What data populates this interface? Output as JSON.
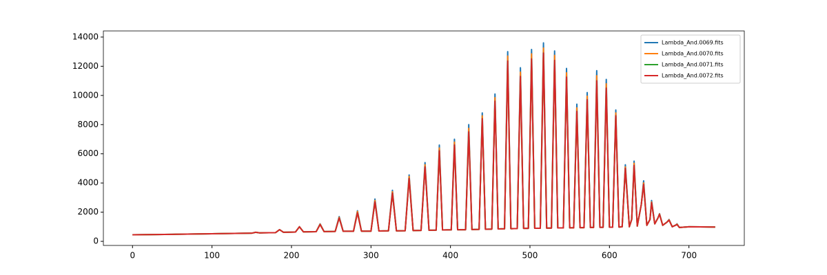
{
  "chart_data": {
    "type": "line",
    "x": [
      0,
      50,
      100,
      150,
      155,
      160,
      180,
      185,
      190,
      205,
      210,
      215,
      231,
      236,
      241,
      255,
      260,
      265,
      278,
      283,
      288,
      300,
      305,
      310,
      322,
      327,
      332,
      343,
      348,
      353,
      363,
      368,
      373,
      382,
      386,
      390,
      401,
      405,
      409,
      419,
      423,
      427,
      436,
      440,
      444,
      452,
      456,
      460,
      468,
      472,
      476,
      484,
      488,
      492,
      498,
      502,
      506,
      513,
      517,
      521,
      527,
      531,
      535,
      542,
      546,
      550,
      555,
      559,
      563,
      568,
      572,
      576,
      580,
      584,
      588,
      592,
      596,
      600,
      604,
      608,
      612,
      616,
      620,
      625,
      628,
      631,
      635,
      640,
      643,
      647,
      651,
      653,
      657,
      661,
      663,
      667,
      672,
      675,
      679,
      683,
      685,
      688,
      700,
      733
    ],
    "series": [
      {
        "name": "Lambda_And.0069.fits",
        "color": "#1f77b4",
        "values": [
          450,
          480,
          520,
          560,
          620,
          580,
          600,
          800,
          620,
          640,
          1000,
          650,
          660,
          1200,
          670,
          680,
          1700,
          690,
          690,
          2100,
          700,
          700,
          2900,
          710,
          720,
          3500,
          720,
          730,
          4550,
          740,
          750,
          5400,
          760,
          770,
          6600,
          780,
          790,
          7000,
          800,
          800,
          8000,
          810,
          820,
          8800,
          830,
          840,
          10100,
          850,
          860,
          13000,
          870,
          880,
          11900,
          890,
          890,
          13150,
          900,
          900,
          13600,
          910,
          910,
          13050,
          920,
          920,
          11850,
          930,
          930,
          9400,
          940,
          940,
          10200,
          950,
          950,
          11700,
          960,
          960,
          11100,
          970,
          970,
          9000,
          980,
          1000,
          5250,
          1000,
          1500,
          5500,
          1050,
          2500,
          4150,
          1100,
          1500,
          2800,
          1200,
          1600,
          1900,
          1100,
          1300,
          1500,
          1000,
          1100,
          1200,
          950,
          1000,
          980
        ]
      },
      {
        "name": "Lambda_And.0070.fits",
        "color": "#ff7f0e",
        "values": [
          450,
          480,
          520,
          560,
          620,
          580,
          600,
          800,
          620,
          640,
          1000,
          650,
          660,
          1180,
          670,
          680,
          1650,
          690,
          690,
          2050,
          700,
          700,
          2800,
          710,
          720,
          3400,
          720,
          730,
          4450,
          740,
          750,
          5250,
          760,
          770,
          6400,
          780,
          790,
          6800,
          800,
          800,
          7750,
          810,
          820,
          8600,
          830,
          840,
          9850,
          850,
          860,
          12700,
          870,
          880,
          11600,
          890,
          890,
          12850,
          900,
          900,
          13250,
          910,
          910,
          12750,
          920,
          920,
          11550,
          930,
          930,
          9150,
          940,
          940,
          9950,
          950,
          950,
          11350,
          960,
          960,
          10800,
          970,
          970,
          8800,
          980,
          1000,
          5100,
          1000,
          1500,
          5350,
          1050,
          2500,
          4000,
          1100,
          1500,
          2700,
          1200,
          1600,
          1880,
          1100,
          1300,
          1480,
          1000,
          1100,
          1180,
          950,
          1000,
          980
        ]
      },
      {
        "name": "Lambda_And.0071.fits",
        "color": "#2ca02c",
        "values": [
          450,
          480,
          520,
          560,
          620,
          580,
          600,
          800,
          620,
          640,
          1000,
          650,
          660,
          1150,
          670,
          680,
          1600,
          690,
          690,
          1950,
          700,
          700,
          2700,
          710,
          720,
          3300,
          720,
          730,
          4300,
          740,
          750,
          5100,
          760,
          770,
          6200,
          780,
          790,
          6600,
          800,
          800,
          7500,
          810,
          820,
          8400,
          830,
          840,
          9600,
          850,
          860,
          12350,
          870,
          880,
          11300,
          890,
          890,
          12500,
          900,
          900,
          12900,
          910,
          910,
          12400,
          920,
          920,
          11250,
          930,
          930,
          8900,
          940,
          940,
          9700,
          950,
          950,
          11000,
          960,
          960,
          10500,
          970,
          970,
          8600,
          980,
          1000,
          5000,
          1000,
          1500,
          5200,
          1050,
          2500,
          3900,
          1100,
          1500,
          2650,
          1200,
          1600,
          1850,
          1100,
          1300,
          1450,
          1000,
          1100,
          1150,
          950,
          1000,
          980
        ]
      },
      {
        "name": "Lambda_And.0072.fits",
        "color": "#d62728",
        "values": [
          450,
          480,
          520,
          560,
          620,
          580,
          600,
          800,
          620,
          640,
          1000,
          650,
          660,
          1150,
          670,
          680,
          1600,
          690,
          690,
          1950,
          700,
          700,
          2700,
          710,
          720,
          3300,
          720,
          730,
          4300,
          740,
          750,
          5100,
          760,
          770,
          6200,
          780,
          790,
          6600,
          800,
          800,
          7500,
          810,
          820,
          8400,
          830,
          840,
          9600,
          850,
          860,
          12350,
          870,
          880,
          11300,
          890,
          890,
          12500,
          900,
          900,
          12900,
          910,
          910,
          12400,
          920,
          920,
          11250,
          930,
          930,
          8900,
          940,
          940,
          9700,
          950,
          950,
          11000,
          960,
          960,
          10500,
          970,
          970,
          8600,
          980,
          1000,
          5000,
          1000,
          1500,
          5200,
          1050,
          2500,
          3900,
          1100,
          1500,
          2650,
          1200,
          1600,
          1850,
          1100,
          1300,
          1450,
          1000,
          1100,
          1150,
          950,
          1000,
          980
        ]
      }
    ],
    "xlim": [
      -36.65,
      769.65
    ],
    "ylim": [
      -280,
      14420
    ],
    "xticks": [
      0,
      100,
      200,
      300,
      400,
      500,
      600,
      700
    ],
    "yticks": [
      0,
      2000,
      4000,
      6000,
      8000,
      10000,
      12000,
      14000
    ],
    "legend": "upper right"
  }
}
